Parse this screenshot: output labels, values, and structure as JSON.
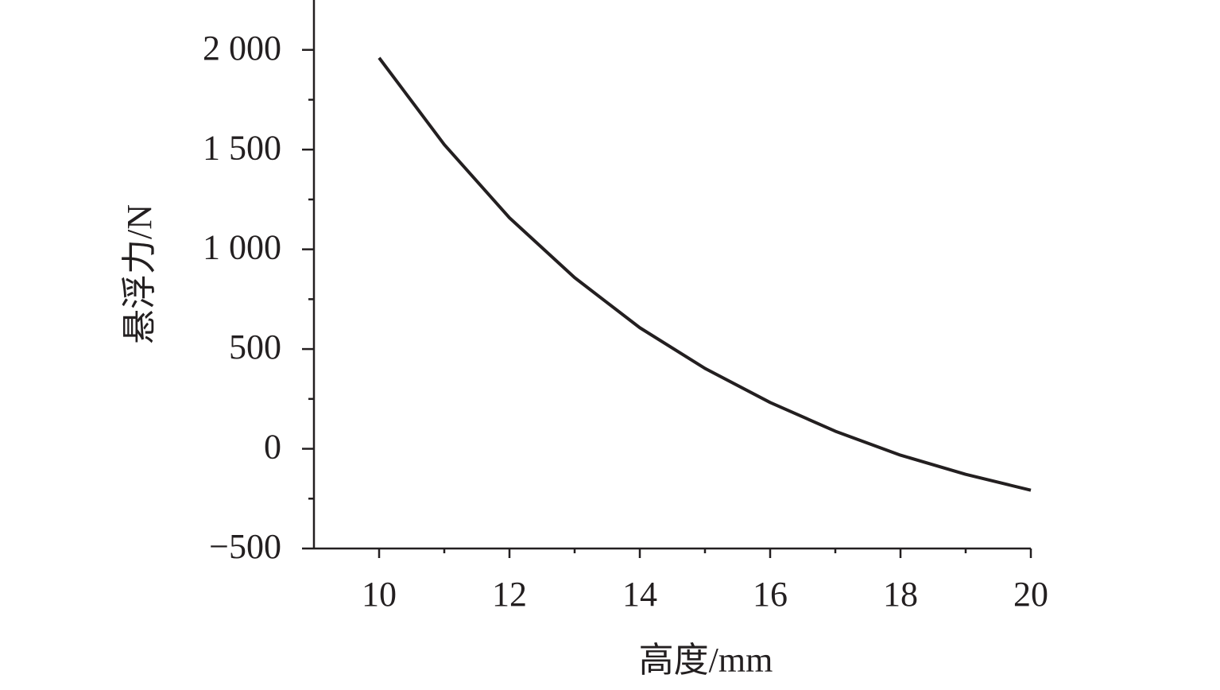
{
  "chart_data": {
    "type": "line",
    "x_label": "高度/mm",
    "y_label": "悬浮力/N",
    "x": [
      10,
      11,
      12,
      13,
      14,
      15,
      16,
      17,
      18,
      19,
      20
    ],
    "series": [
      {
        "color": "#231f20",
        "values": [
          1960,
          1525,
          1158,
          858,
          607,
          403,
          232,
          88,
          -32,
          -128,
          -208
        ]
      }
    ],
    "xlim": [
      9,
      20
    ],
    "xticks": [
      10,
      12,
      14,
      16,
      18,
      20
    ],
    "x_minor_ticks": [
      11,
      13,
      15,
      17,
      19
    ],
    "ylim": [
      -500,
      2250
    ],
    "yticks": [
      {
        "value": -500,
        "label": "−500"
      },
      0,
      500,
      {
        "value": 1000,
        "label": "1 000"
      },
      {
        "value": 1500,
        "label": "1 500"
      },
      {
        "value": 2000,
        "label": "2 000"
      }
    ],
    "y_minor_ticks": [
      -250,
      250,
      750,
      1250,
      1750
    ],
    "grid": false
  }
}
